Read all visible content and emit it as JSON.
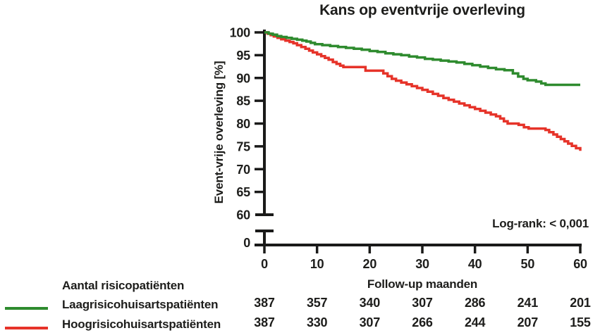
{
  "colors": {
    "series_green": "#2e8b2e",
    "series_red": "#e63329",
    "text": "#1d1d1b",
    "axis": "#1a1a19"
  },
  "chart_data": {
    "type": "line",
    "subtype": "kaplan-meier-step",
    "title": "Kans op eventvrije overleving",
    "xlabel": "Follow-up maanden",
    "ylabel": "Event-vrije overleving [%]",
    "annotation": "Log-rank: < 0,001",
    "xlim": [
      0,
      60
    ],
    "ylim": [
      60,
      100
    ],
    "x_ticks": [
      0,
      10,
      20,
      30,
      40,
      50,
      60
    ],
    "y_ticks": [
      100,
      95,
      90,
      85,
      80,
      75,
      70,
      65,
      60
    ],
    "y_axis_break_label": "0",
    "grid": false,
    "legend_position": "bottom-left",
    "series": [
      {
        "name": "Laagrisicohuisartspatiënten",
        "color": "#2e8b2e",
        "points": [
          [
            0,
            100
          ],
          [
            0.8,
            99.7
          ],
          [
            1.6,
            99.5
          ],
          [
            2.4,
            99.2
          ],
          [
            3.2,
            99.0
          ],
          [
            4.2,
            98.8
          ],
          [
            5.2,
            98.6
          ],
          [
            6.2,
            98.4
          ],
          [
            7.2,
            98.2
          ],
          [
            8,
            98.0
          ],
          [
            8.8,
            97.7
          ],
          [
            9.6,
            97.4
          ],
          [
            11,
            97.2
          ],
          [
            12.5,
            97.0
          ],
          [
            14,
            96.8
          ],
          [
            15.5,
            96.6
          ],
          [
            17,
            96.4
          ],
          [
            18.5,
            96.2
          ],
          [
            20,
            95.9
          ],
          [
            21.5,
            95.7
          ],
          [
            23,
            95.4
          ],
          [
            24.5,
            95.2
          ],
          [
            26,
            95.0
          ],
          [
            27.5,
            94.7
          ],
          [
            29,
            94.5
          ],
          [
            30.5,
            94.2
          ],
          [
            32,
            94.0
          ],
          [
            33.5,
            93.8
          ],
          [
            35,
            93.6
          ],
          [
            36.5,
            93.4
          ],
          [
            38,
            93.1
          ],
          [
            39.5,
            92.8
          ],
          [
            41,
            92.5
          ],
          [
            42.5,
            92.2
          ],
          [
            44,
            91.9
          ],
          [
            45.6,
            91.7
          ],
          [
            47.2,
            91.0
          ],
          [
            48.2,
            90.3
          ],
          [
            49.2,
            89.8
          ],
          [
            50,
            89.5
          ],
          [
            51.6,
            89.2
          ],
          [
            52.6,
            88.8
          ],
          [
            53.4,
            88.5
          ],
          [
            60,
            88.5
          ]
        ]
      },
      {
        "name": "Hoogrisicohuisartspatiënten",
        "color": "#e63329",
        "points": [
          [
            0,
            100
          ],
          [
            0.6,
            99.7
          ],
          [
            1.2,
            99.4
          ],
          [
            1.8,
            99.1
          ],
          [
            2.5,
            98.8
          ],
          [
            3.2,
            98.5
          ],
          [
            4,
            98.2
          ],
          [
            4.8,
            97.9
          ],
          [
            5.5,
            97.6
          ],
          [
            6.2,
            97.2
          ],
          [
            7,
            96.8
          ],
          [
            7.8,
            96.4
          ],
          [
            8.5,
            96.0
          ],
          [
            9.2,
            95.6
          ],
          [
            10,
            95.2
          ],
          [
            10.8,
            94.8
          ],
          [
            11.5,
            94.4
          ],
          [
            12.2,
            94.0
          ],
          [
            13,
            93.5
          ],
          [
            13.7,
            93.1
          ],
          [
            14.4,
            92.7
          ],
          [
            15,
            92.4
          ],
          [
            19.2,
            91.6
          ],
          [
            22.6,
            91.0
          ],
          [
            23.4,
            90.4
          ],
          [
            24.2,
            89.8
          ],
          [
            25,
            89.4
          ],
          [
            26,
            89.0
          ],
          [
            27,
            88.6
          ],
          [
            28,
            88.2
          ],
          [
            29,
            87.8
          ],
          [
            30,
            87.4
          ],
          [
            31,
            87.0
          ],
          [
            32,
            86.5
          ],
          [
            33,
            86.1
          ],
          [
            34,
            85.6
          ],
          [
            35,
            85.2
          ],
          [
            36,
            84.8
          ],
          [
            37,
            84.4
          ],
          [
            38,
            84.0
          ],
          [
            39,
            83.6
          ],
          [
            40,
            83.2
          ],
          [
            41,
            82.8
          ],
          [
            42,
            82.4
          ],
          [
            43,
            82.0
          ],
          [
            44,
            81.6
          ],
          [
            44.8,
            81.1
          ],
          [
            45.5,
            80.5
          ],
          [
            46.2,
            80.0
          ],
          [
            48.3,
            79.7
          ],
          [
            49.3,
            79.2
          ],
          [
            50.2,
            78.9
          ],
          [
            53.4,
            78.6
          ],
          [
            54.1,
            78.1
          ],
          [
            54.9,
            77.6
          ],
          [
            55.6,
            77.1
          ],
          [
            56.3,
            76.6
          ],
          [
            57,
            76.1
          ],
          [
            57.7,
            75.6
          ],
          [
            58.4,
            75.1
          ],
          [
            59.2,
            74.6
          ],
          [
            60,
            74.0
          ]
        ]
      }
    ]
  },
  "risk_table": {
    "header": "Aantal risicopatiënten",
    "time_points": [
      0,
      10,
      20,
      30,
      40,
      50,
      60
    ],
    "rows": [
      {
        "label": "Laagrisicohuisartspatiënten",
        "color": "#2e8b2e",
        "counts": [
          387,
          357,
          340,
          307,
          286,
          241,
          201
        ]
      },
      {
        "label": "Hoogrisicohuisartspatiënten",
        "color": "#e63329",
        "counts": [
          387,
          330,
          307,
          266,
          244,
          207,
          155
        ]
      }
    ]
  }
}
